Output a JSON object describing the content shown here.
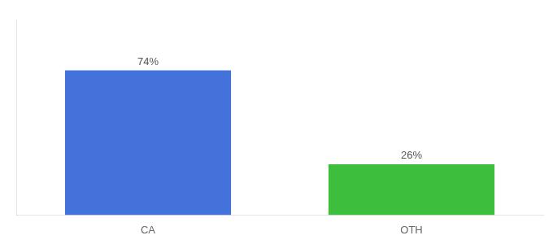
{
  "chart_data": {
    "type": "bar",
    "categories": [
      "CA",
      "OTH"
    ],
    "values": [
      74,
      26
    ],
    "value_labels": [
      "74%",
      "26%"
    ],
    "colors": [
      "#4472db",
      "#3dbf3d"
    ],
    "ylim": [
      0,
      100
    ],
    "data_labels": true,
    "tick_labels": "x",
    "grid": false
  }
}
